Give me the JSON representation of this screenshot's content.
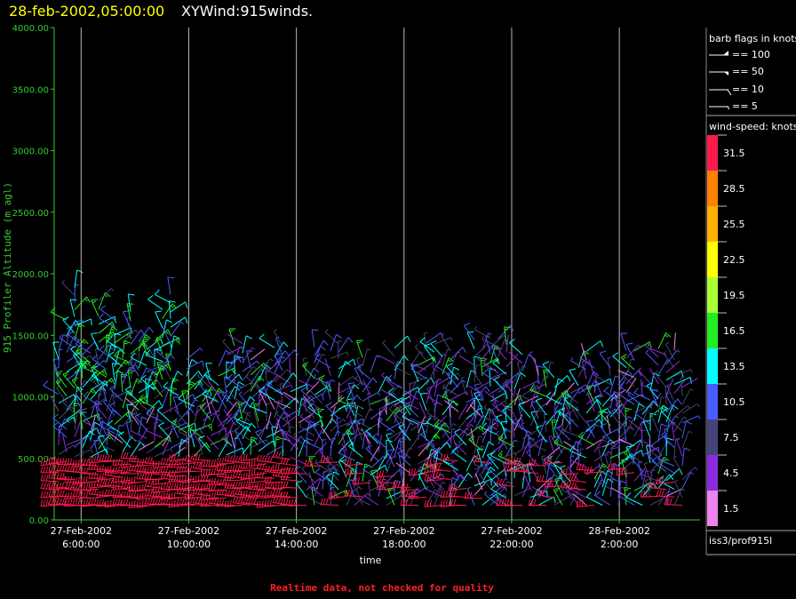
{
  "header": {
    "time": "28-feb-2002,05:00:00",
    "title": "XYWind:915winds."
  },
  "footer": "Realtime data, not checked for quality",
  "legend": {
    "barb_title": "barb flags in knots",
    "barb_items": [
      "== 100",
      "== 50",
      "== 10",
      "== 5"
    ],
    "speed_title": "wind-speed: knots",
    "speed_bins": [
      {
        "label": "31.5",
        "color": "#ff1a4a"
      },
      {
        "label": "28.5",
        "color": "#ff7f00"
      },
      {
        "label": "25.5",
        "color": "#ffb000"
      },
      {
        "label": "22.5",
        "color": "#ffff00"
      },
      {
        "label": "19.5",
        "color": "#aaff33"
      },
      {
        "label": "16.5",
        "color": "#22ee22"
      },
      {
        "label": "13.5",
        "color": "#00ffff"
      },
      {
        "label": "10.5",
        "color": "#4a5cff"
      },
      {
        "label": "7.5",
        "color": "#44447a"
      },
      {
        "label": "4.5",
        "color": "#8a2be2"
      },
      {
        "label": "1.5",
        "color": "#ee82ee"
      }
    ],
    "source": "iss3/prof915l"
  },
  "chart_data": {
    "type": "wind-barb profile",
    "ylabel": "915 Profiler Altitude (m agl)",
    "xlabel": "time",
    "ylim": [
      0,
      4000
    ],
    "yticks": [
      "0.00",
      "500.00",
      "1000.00",
      "1500.00",
      "2000.00",
      "2500.00",
      "3000.00",
      "3500.00",
      "4000.00"
    ],
    "xticks": [
      {
        "date": "27-Feb-2002",
        "time": "6:00:00"
      },
      {
        "date": "27-Feb-2002",
        "time": "10:00:00"
      },
      {
        "date": "27-Feb-2002",
        "time": "14:00:00"
      },
      {
        "date": "27-Feb-2002",
        "time": "18:00:00"
      },
      {
        "date": "27-Feb-2002",
        "time": "22:00:00"
      },
      {
        "date": "28-Feb-2002",
        "time": "2:00:00"
      }
    ],
    "x_range": [
      "27-Feb-2002 05:00",
      "28-Feb-2002 05:00"
    ],
    "grid": "vertical lines at x ticks"
  }
}
